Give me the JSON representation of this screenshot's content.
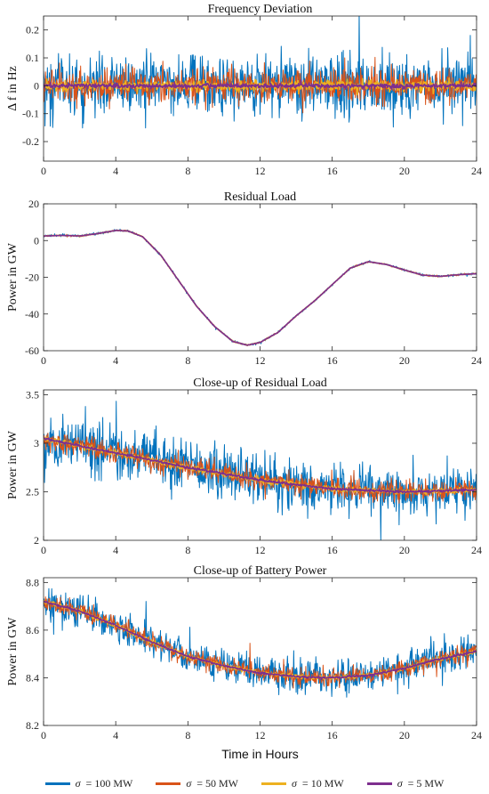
{
  "chart_data": [
    {
      "type": "line",
      "title": "Frequency Deviation",
      "ylabel": "Δ f in Hz",
      "xlabel": "",
      "xlim": [
        0,
        24
      ],
      "ylim": [
        -0.27,
        0.25
      ],
      "x_ticks": [
        0,
        4,
        8,
        12,
        16,
        20,
        24
      ],
      "y_ticks": [
        -0.2,
        -0.1,
        0,
        0.1,
        0.2
      ],
      "y_tick_labels": [
        "-0.2",
        "-0.1",
        "0",
        "0.1",
        "0.2"
      ],
      "series": [
        {
          "legend": "σ = 100 MW",
          "mean": [
            [
              0,
              0
            ],
            [
              24,
              0
            ]
          ],
          "noise_std": 0.055
        },
        {
          "legend": "σ = 50 MW",
          "mean": [
            [
              0,
              0
            ],
            [
              24,
              0
            ]
          ],
          "noise_std": 0.03
        },
        {
          "legend": "σ = 10 MW",
          "mean": [
            [
              0,
              0
            ],
            [
              24,
              0
            ]
          ],
          "noise_std": 0.008
        },
        {
          "legend": "σ = 5 MW",
          "mean": [
            [
              0,
              0
            ],
            [
              24,
              0
            ]
          ],
          "noise_std": 0.004
        }
      ]
    },
    {
      "type": "line",
      "title": "Residual Load",
      "ylabel": "Power in GW",
      "xlabel": "",
      "xlim": [
        0,
        24
      ],
      "ylim": [
        -60,
        20
      ],
      "x_ticks": [
        0,
        4,
        8,
        12,
        16,
        20,
        24
      ],
      "y_ticks": [
        -60,
        -40,
        -20,
        0,
        20
      ],
      "y_tick_labels": [
        "-60",
        "-40",
        "-20",
        "0",
        "20"
      ],
      "series": [
        {
          "legend": "σ = 100 MW",
          "mean": [
            [
              0,
              2.5
            ],
            [
              1,
              2.8
            ],
            [
              2,
              2.5
            ],
            [
              3,
              3.8
            ],
            [
              4,
              5.5
            ],
            [
              4.7,
              5.2
            ],
            [
              5.5,
              2
            ],
            [
              6.5,
              -8
            ],
            [
              7.5,
              -22
            ],
            [
              8.5,
              -36
            ],
            [
              9.5,
              -47
            ],
            [
              10.5,
              -55
            ],
            [
              11.3,
              -57
            ],
            [
              12,
              -55.5
            ],
            [
              13,
              -50
            ],
            [
              14,
              -41
            ],
            [
              15,
              -33
            ],
            [
              16,
              -24
            ],
            [
              17,
              -15
            ],
            [
              18,
              -11.5
            ],
            [
              19,
              -13
            ],
            [
              20,
              -16
            ],
            [
              21,
              -18.8
            ],
            [
              22,
              -19.5
            ],
            [
              23,
              -18.6
            ],
            [
              24,
              -18
            ]
          ],
          "noise_std": 0.3
        },
        {
          "legend": "σ = 50 MW",
          "mean": [
            [
              0,
              2.5
            ],
            [
              1,
              2.8
            ],
            [
              2,
              2.5
            ],
            [
              3,
              3.8
            ],
            [
              4,
              5.5
            ],
            [
              4.7,
              5.2
            ],
            [
              5.5,
              2
            ],
            [
              6.5,
              -8
            ],
            [
              7.5,
              -22
            ],
            [
              8.5,
              -36
            ],
            [
              9.5,
              -47
            ],
            [
              10.5,
              -55
            ],
            [
              11.3,
              -57
            ],
            [
              12,
              -55.5
            ],
            [
              13,
              -50
            ],
            [
              14,
              -41
            ],
            [
              15,
              -33
            ],
            [
              16,
              -24
            ],
            [
              17,
              -15
            ],
            [
              18,
              -11.5
            ],
            [
              19,
              -13
            ],
            [
              20,
              -16
            ],
            [
              21,
              -18.8
            ],
            [
              22,
              -19.5
            ],
            [
              23,
              -18.6
            ],
            [
              24,
              -18
            ]
          ],
          "noise_std": 0.2
        },
        {
          "legend": "σ = 10 MW",
          "mean": [
            [
              0,
              2.5
            ],
            [
              1,
              2.8
            ],
            [
              2,
              2.5
            ],
            [
              3,
              3.8
            ],
            [
              4,
              5.5
            ],
            [
              4.7,
              5.2
            ],
            [
              5.5,
              2
            ],
            [
              6.5,
              -8
            ],
            [
              7.5,
              -22
            ],
            [
              8.5,
              -36
            ],
            [
              9.5,
              -47
            ],
            [
              10.5,
              -55
            ],
            [
              11.3,
              -57
            ],
            [
              12,
              -55.5
            ],
            [
              13,
              -50
            ],
            [
              14,
              -41
            ],
            [
              15,
              -33
            ],
            [
              16,
              -24
            ],
            [
              17,
              -15
            ],
            [
              18,
              -11.5
            ],
            [
              19,
              -13
            ],
            [
              20,
              -16
            ],
            [
              21,
              -18.8
            ],
            [
              22,
              -19.5
            ],
            [
              23,
              -18.6
            ],
            [
              24,
              -18
            ]
          ],
          "noise_std": 0.1
        },
        {
          "legend": "σ = 5 MW",
          "mean": [
            [
              0,
              2.5
            ],
            [
              1,
              2.8
            ],
            [
              2,
              2.5
            ],
            [
              3,
              3.8
            ],
            [
              4,
              5.5
            ],
            [
              4.7,
              5.2
            ],
            [
              5.5,
              2
            ],
            [
              6.5,
              -8
            ],
            [
              7.5,
              -22
            ],
            [
              8.5,
              -36
            ],
            [
              9.5,
              -47
            ],
            [
              10.5,
              -55
            ],
            [
              11.3,
              -57
            ],
            [
              12,
              -55.5
            ],
            [
              13,
              -50
            ],
            [
              14,
              -41
            ],
            [
              15,
              -33
            ],
            [
              16,
              -24
            ],
            [
              17,
              -15
            ],
            [
              18,
              -11.5
            ],
            [
              19,
              -13
            ],
            [
              20,
              -16
            ],
            [
              21,
              -18.8
            ],
            [
              22,
              -19.5
            ],
            [
              23,
              -18.6
            ],
            [
              24,
              -18
            ]
          ],
          "noise_std": 0.05
        }
      ]
    },
    {
      "type": "line",
      "title": "Close-up of Residual Load",
      "ylabel": "Power in GW",
      "xlabel": "",
      "xlim": [
        0,
        24
      ],
      "ylim": [
        2,
        3.55
      ],
      "x_ticks": [
        0,
        4,
        8,
        12,
        16,
        20,
        24
      ],
      "y_ticks": [
        2,
        2.5,
        3,
        3.5
      ],
      "y_tick_labels": [
        "2",
        "2.5",
        "3",
        "3.5"
      ],
      "series": [
        {
          "legend": "σ = 100 MW",
          "mean": [
            [
              0,
              3.05
            ],
            [
              4,
              2.9
            ],
            [
              8,
              2.75
            ],
            [
              12,
              2.62
            ],
            [
              16,
              2.53
            ],
            [
              20,
              2.5
            ],
            [
              24,
              2.52
            ]
          ],
          "noise_std": 0.13
        },
        {
          "legend": "σ = 50 MW",
          "mean": [
            [
              0,
              3.05
            ],
            [
              4,
              2.9
            ],
            [
              8,
              2.75
            ],
            [
              12,
              2.62
            ],
            [
              16,
              2.53
            ],
            [
              20,
              2.5
            ],
            [
              24,
              2.52
            ]
          ],
          "noise_std": 0.055
        },
        {
          "legend": "σ = 10 MW",
          "mean": [
            [
              0,
              3.05
            ],
            [
              4,
              2.9
            ],
            [
              8,
              2.75
            ],
            [
              12,
              2.62
            ],
            [
              16,
              2.53
            ],
            [
              20,
              2.5
            ],
            [
              24,
              2.52
            ]
          ],
          "noise_std": 0.012
        },
        {
          "legend": "σ = 5 MW",
          "mean": [
            [
              0,
              3.05
            ],
            [
              4,
              2.9
            ],
            [
              8,
              2.75
            ],
            [
              12,
              2.62
            ],
            [
              16,
              2.53
            ],
            [
              20,
              2.5
            ],
            [
              24,
              2.52
            ]
          ],
          "noise_std": 0.006
        }
      ]
    },
    {
      "type": "line",
      "title": "Close-up of Battery Power",
      "ylabel": "Power in GW",
      "xlabel": "Time in Hours",
      "xlim": [
        0,
        24
      ],
      "ylim": [
        8.2,
        8.82
      ],
      "x_ticks": [
        0,
        4,
        8,
        12,
        16,
        20,
        24
      ],
      "y_ticks": [
        8.2,
        8.4,
        8.6,
        8.8
      ],
      "y_tick_labels": [
        "8.2",
        "8.4",
        "8.6",
        "8.8"
      ],
      "series": [
        {
          "legend": "σ = 100 MW",
          "mean": [
            [
              0,
              8.72
            ],
            [
              2,
              8.68
            ],
            [
              4,
              8.62
            ],
            [
              6,
              8.55
            ],
            [
              8,
              8.49
            ],
            [
              10,
              8.45
            ],
            [
              12,
              8.42
            ],
            [
              14,
              8.405
            ],
            [
              16,
              8.4
            ],
            [
              18,
              8.41
            ],
            [
              20,
              8.44
            ],
            [
              22,
              8.48
            ],
            [
              24,
              8.51
            ]
          ],
          "noise_std": 0.035
        },
        {
          "legend": "σ = 50 MW",
          "mean": [
            [
              0,
              8.72
            ],
            [
              2,
              8.68
            ],
            [
              4,
              8.62
            ],
            [
              6,
              8.55
            ],
            [
              8,
              8.49
            ],
            [
              10,
              8.45
            ],
            [
              12,
              8.42
            ],
            [
              14,
              8.405
            ],
            [
              16,
              8.4
            ],
            [
              18,
              8.41
            ],
            [
              20,
              8.44
            ],
            [
              22,
              8.48
            ],
            [
              24,
              8.51
            ]
          ],
          "noise_std": 0.018
        },
        {
          "legend": "σ = 10 MW",
          "mean": [
            [
              0,
              8.72
            ],
            [
              2,
              8.68
            ],
            [
              4,
              8.62
            ],
            [
              6,
              8.55
            ],
            [
              8,
              8.49
            ],
            [
              10,
              8.45
            ],
            [
              12,
              8.42
            ],
            [
              14,
              8.405
            ],
            [
              16,
              8.4
            ],
            [
              18,
              8.41
            ],
            [
              20,
              8.44
            ],
            [
              22,
              8.48
            ],
            [
              24,
              8.51
            ]
          ],
          "noise_std": 0.004
        },
        {
          "legend": "σ = 5 MW",
          "mean": [
            [
              0,
              8.72
            ],
            [
              2,
              8.68
            ],
            [
              4,
              8.62
            ],
            [
              6,
              8.55
            ],
            [
              8,
              8.49
            ],
            [
              10,
              8.45
            ],
            [
              12,
              8.42
            ],
            [
              14,
              8.405
            ],
            [
              16,
              8.4
            ],
            [
              18,
              8.41
            ],
            [
              20,
              8.44
            ],
            [
              22,
              8.48
            ],
            [
              24,
              8.51
            ]
          ],
          "noise_std": 0.002
        }
      ]
    }
  ],
  "legend": {
    "items": [
      {
        "sigma": "σ",
        "text": " = 100 MW",
        "color": "#0072BD"
      },
      {
        "sigma": "σ",
        "text": " = 50 MW",
        "color": "#D95319"
      },
      {
        "sigma": "σ",
        "text": " = 10 MW",
        "color": "#EDB120"
      },
      {
        "sigma": "σ",
        "text": " = 5 MW",
        "color": "#7E2F8E"
      }
    ]
  }
}
